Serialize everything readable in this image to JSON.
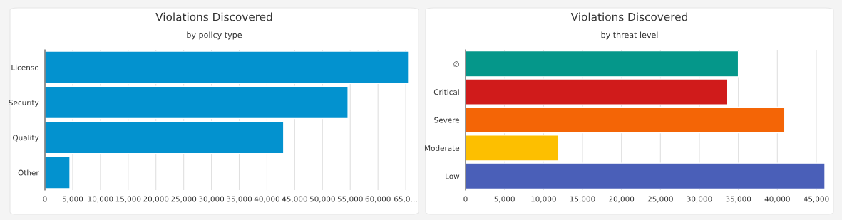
{
  "chart_data": [
    {
      "type": "bar",
      "orientation": "horizontal",
      "title": "Violations Discovered",
      "subtitle": "by policy type",
      "categories": [
        "License",
        "Security",
        "Quality",
        "Other"
      ],
      "values": [
        65500,
        54600,
        43000,
        4500
      ],
      "color": "#0392cf",
      "xlim": [
        0,
        65500
      ],
      "xticks": [
        0,
        {
          "value": 5000,
          "label": "5,000"
        },
        {
          "value": 10000,
          "label": "10,000"
        },
        {
          "value": 15000,
          "label": "15,000"
        },
        {
          "value": 20000,
          "label": "20,000"
        },
        {
          "value": 25000,
          "label": "25,000"
        },
        {
          "value": 30000,
          "label": "30,000"
        },
        {
          "value": 35000,
          "label": "35,000"
        },
        {
          "value": 40000,
          "label": "40,000"
        },
        {
          "value": 45000,
          "label": "45,000"
        },
        {
          "value": 50000,
          "label": "50,000"
        },
        {
          "value": 55000,
          "label": "55,000"
        },
        {
          "value": 60000,
          "label": "60,000"
        },
        {
          "value": 65000,
          "label": "65,0…"
        }
      ],
      "grid": "x",
      "legend": false
    },
    {
      "type": "bar",
      "orientation": "horizontal",
      "title": "Violations Discovered",
      "subtitle": "by threat level",
      "categories": [
        "∅",
        "Critical",
        "Severe",
        "Moderate",
        "Low"
      ],
      "values": [
        35000,
        33600,
        40900,
        11900,
        46100
      ],
      "colors": [
        "#05978a",
        "#d01b1b",
        "#f46506",
        "#fdbf00",
        "#4a5fb8"
      ],
      "xlim": [
        0,
        46100
      ],
      "xticks": [
        0,
        {
          "value": 5000,
          "label": "5,000"
        },
        {
          "value": 10000,
          "label": "10,000"
        },
        {
          "value": 15000,
          "label": "15,000"
        },
        {
          "value": 20000,
          "label": "20,000"
        },
        {
          "value": 25000,
          "label": "25,000"
        },
        {
          "value": 30000,
          "label": "30,000"
        },
        {
          "value": 35000,
          "label": "35,000"
        },
        {
          "value": 40000,
          "label": "40,000"
        },
        {
          "value": 45000,
          "label": "45,000"
        }
      ],
      "grid": "x",
      "legend": false
    }
  ]
}
